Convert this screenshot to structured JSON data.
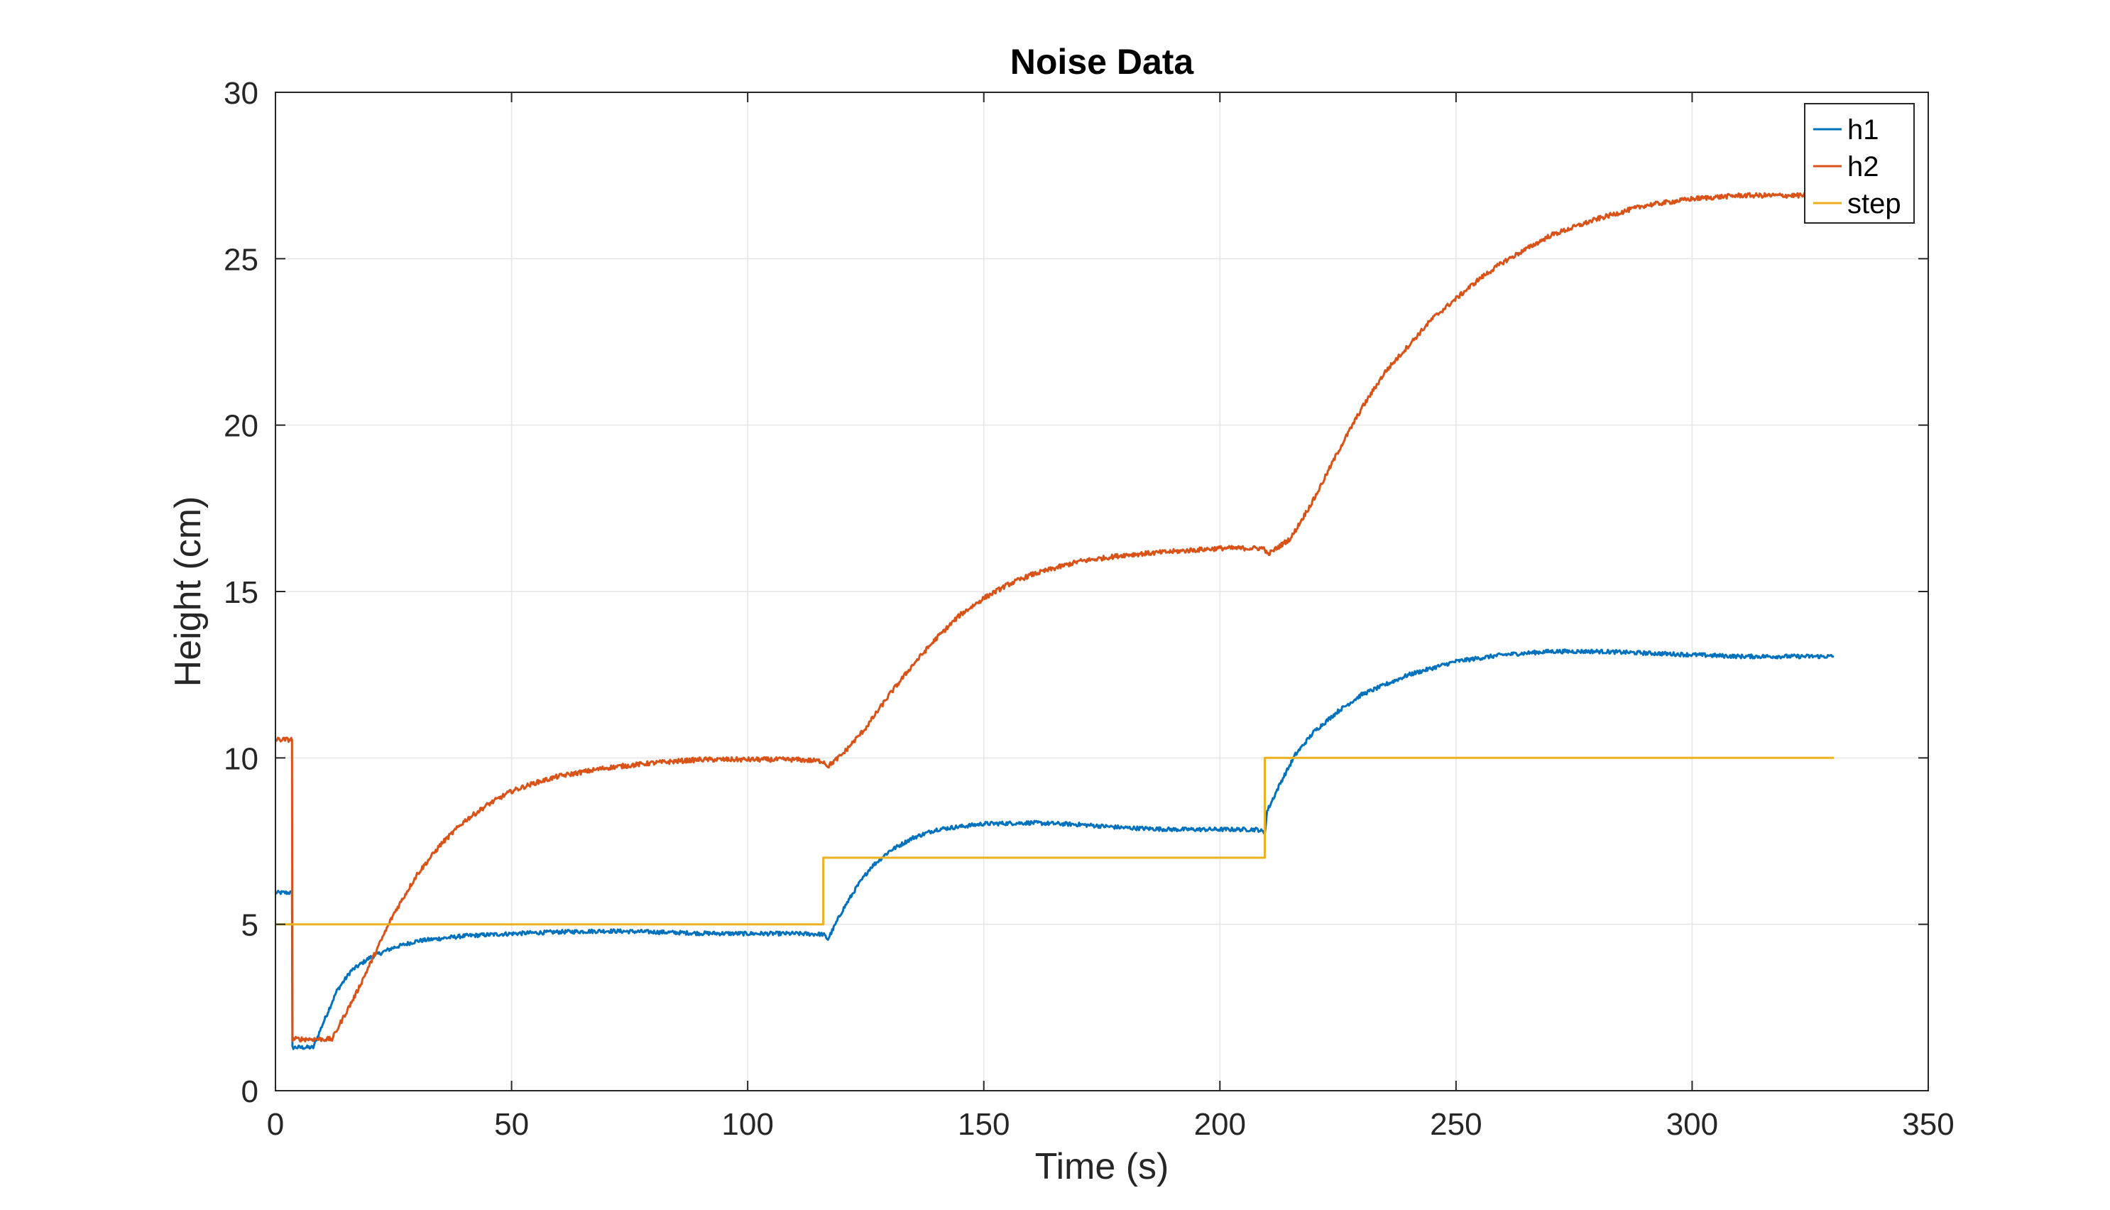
{
  "chart_data": {
    "type": "line",
    "title": "Noise Data",
    "xlabel": "Time (s)",
    "ylabel": "Height (cm)",
    "xlim": [
      0,
      350
    ],
    "ylim": [
      0,
      30
    ],
    "xticks": [
      0,
      50,
      100,
      150,
      200,
      250,
      300,
      350
    ],
    "yticks": [
      0,
      5,
      10,
      15,
      20,
      25,
      30
    ],
    "grid": true,
    "legend_position": "top-right",
    "series": [
      {
        "name": "h1",
        "color": "#0072BD",
        "noise": 0.06,
        "points": [
          [
            0,
            5.95
          ],
          [
            3.5,
            5.95
          ],
          [
            3.6,
            1.3
          ],
          [
            8,
            1.3
          ],
          [
            10,
            2.0
          ],
          [
            13,
            3.0
          ],
          [
            16,
            3.6
          ],
          [
            20,
            4.0
          ],
          [
            25,
            4.3
          ],
          [
            30,
            4.5
          ],
          [
            40,
            4.65
          ],
          [
            50,
            4.72
          ],
          [
            60,
            4.77
          ],
          [
            70,
            4.8
          ],
          [
            80,
            4.77
          ],
          [
            90,
            4.73
          ],
          [
            100,
            4.72
          ],
          [
            110,
            4.72
          ],
          [
            116,
            4.7
          ],
          [
            117,
            4.55
          ],
          [
            120,
            5.4
          ],
          [
            123,
            6.1
          ],
          [
            126,
            6.7
          ],
          [
            130,
            7.2
          ],
          [
            135,
            7.6
          ],
          [
            140,
            7.85
          ],
          [
            150,
            8.02
          ],
          [
            160,
            8.05
          ],
          [
            170,
            8.0
          ],
          [
            180,
            7.9
          ],
          [
            190,
            7.85
          ],
          [
            200,
            7.85
          ],
          [
            208,
            7.85
          ],
          [
            209.5,
            7.75
          ],
          [
            210,
            8.4
          ],
          [
            213,
            9.3
          ],
          [
            216,
            10.1
          ],
          [
            220,
            10.8
          ],
          [
            225,
            11.4
          ],
          [
            230,
            11.9
          ],
          [
            240,
            12.5
          ],
          [
            250,
            12.9
          ],
          [
            260,
            13.1
          ],
          [
            270,
            13.2
          ],
          [
            280,
            13.2
          ],
          [
            290,
            13.15
          ],
          [
            300,
            13.1
          ],
          [
            310,
            13.05
          ],
          [
            320,
            13.05
          ],
          [
            330,
            13.05
          ]
        ]
      },
      {
        "name": "h2",
        "color": "#D95319",
        "noise": 0.07,
        "points": [
          [
            0,
            10.55
          ],
          [
            3.5,
            10.55
          ],
          [
            3.6,
            1.55
          ],
          [
            12,
            1.55
          ],
          [
            14,
            2.1
          ],
          [
            17,
            2.9
          ],
          [
            20,
            3.8
          ],
          [
            25,
            5.3
          ],
          [
            30,
            6.5
          ],
          [
            35,
            7.4
          ],
          [
            40,
            8.1
          ],
          [
            45,
            8.6
          ],
          [
            50,
            9.0
          ],
          [
            55,
            9.25
          ],
          [
            60,
            9.45
          ],
          [
            70,
            9.7
          ],
          [
            80,
            9.85
          ],
          [
            90,
            9.95
          ],
          [
            100,
            9.95
          ],
          [
            110,
            9.95
          ],
          [
            116,
            9.9
          ],
          [
            117,
            9.75
          ],
          [
            120,
            10.1
          ],
          [
            125,
            10.9
          ],
          [
            130,
            11.9
          ],
          [
            135,
            12.8
          ],
          [
            140,
            13.6
          ],
          [
            145,
            14.3
          ],
          [
            150,
            14.8
          ],
          [
            155,
            15.2
          ],
          [
            160,
            15.5
          ],
          [
            170,
            15.9
          ],
          [
            180,
            16.1
          ],
          [
            190,
            16.2
          ],
          [
            200,
            16.3
          ],
          [
            209.5,
            16.3
          ],
          [
            210,
            16.1
          ],
          [
            215,
            16.6
          ],
          [
            220,
            17.8
          ],
          [
            225,
            19.2
          ],
          [
            230,
            20.5
          ],
          [
            235,
            21.6
          ],
          [
            240,
            22.4
          ],
          [
            245,
            23.2
          ],
          [
            250,
            23.8
          ],
          [
            255,
            24.4
          ],
          [
            260,
            24.9
          ],
          [
            265,
            25.3
          ],
          [
            270,
            25.7
          ],
          [
            280,
            26.2
          ],
          [
            290,
            26.6
          ],
          [
            300,
            26.8
          ],
          [
            310,
            26.9
          ],
          [
            320,
            26.9
          ],
          [
            330,
            26.9
          ]
        ]
      },
      {
        "name": "step",
        "color": "#EDB120",
        "noise": 0,
        "points": [
          [
            0,
            5
          ],
          [
            116,
            5
          ],
          [
            116,
            7
          ],
          [
            209.5,
            7
          ],
          [
            209.5,
            10
          ],
          [
            330,
            10
          ]
        ]
      }
    ]
  }
}
